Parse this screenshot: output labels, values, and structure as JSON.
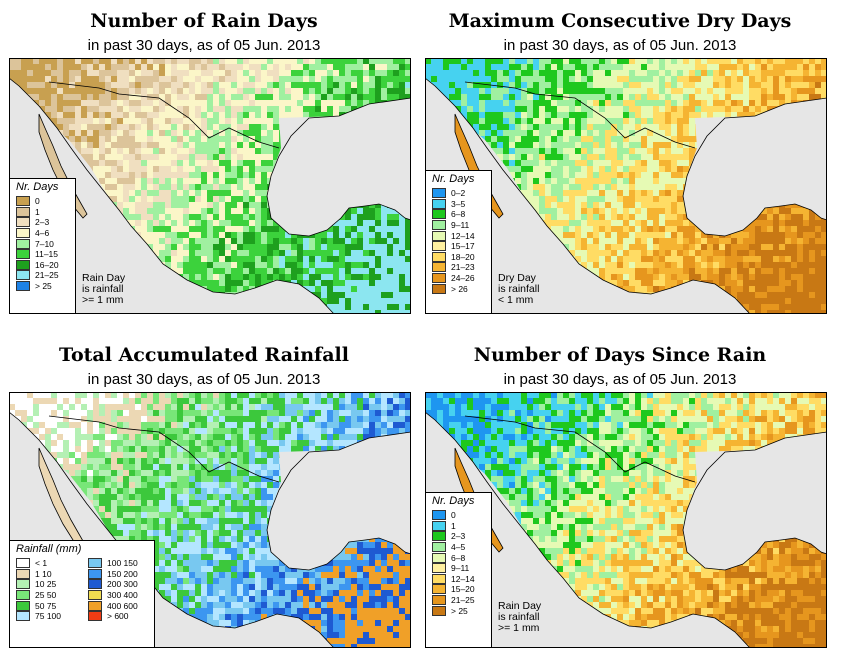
{
  "panels": [
    {
      "id": "rain-days",
      "title": "Number of Rain Days",
      "subtitle": "in past 30 days, as of  05 Jun. 2013",
      "legend_title": "Nr. Days",
      "legend": [
        {
          "label": "0",
          "color": "#c8a050"
        },
        {
          "label": "1",
          "color": "#dcc49a"
        },
        {
          "label": "2–3",
          "color": "#f0dfc0"
        },
        {
          "label": "4–6",
          "color": "#fbf6c8"
        },
        {
          "label": "7–10",
          "color": "#a0f0a0"
        },
        {
          "label": "11–15",
          "color": "#3cd23c"
        },
        {
          "label": "16–20",
          "color": "#1ea01e"
        },
        {
          "label": "21–25",
          "color": "#8ce6f0"
        },
        {
          "label": "> 25",
          "color": "#1e82e6"
        }
      ],
      "note": [
        "Rain Day",
        "is rainfall",
        ">= 1 mm"
      ]
    },
    {
      "id": "dry-days",
      "title": "Maximum Consecutive Dry Days",
      "subtitle": "in past 30 days, as of  05 Jun. 2013",
      "legend_title": "Nr. Days",
      "legend": [
        {
          "label": "0–2",
          "color": "#1e96f0"
        },
        {
          "label": "3–5",
          "color": "#46d2f0"
        },
        {
          "label": "6–8",
          "color": "#1ec81e"
        },
        {
          "label": "9–11",
          "color": "#a0f0a0"
        },
        {
          "label": "12–14",
          "color": "#e6fab4"
        },
        {
          "label": "15–17",
          "color": "#fff0a0"
        },
        {
          "label": "18–20",
          "color": "#ffdc64"
        },
        {
          "label": "21–23",
          "color": "#f5b432"
        },
        {
          "label": "24–26",
          "color": "#e6961e"
        },
        {
          "label": "> 26",
          "color": "#c87814"
        }
      ],
      "note": [
        "Dry Day",
        "is rainfall",
        "< 1 mm"
      ]
    },
    {
      "id": "total-rainfall",
      "title": "Total Accumulated Rainfall",
      "subtitle": "in past 30 days, as of  05 Jun. 2013",
      "legend_title": "Rainfall (mm)",
      "legend_left": [
        {
          "label": "< 1",
          "color": "#ffffff"
        },
        {
          "label": "1    10",
          "color": "#ecd8b4"
        },
        {
          "label": "10    25",
          "color": "#b4f0b4"
        },
        {
          "label": "25    50",
          "color": "#78e678"
        },
        {
          "label": "50    75",
          "color": "#3cc83c"
        },
        {
          "label": "75  100",
          "color": "#b4e6ff"
        }
      ],
      "legend_right": [
        {
          "label": "100  150",
          "color": "#78c8f0"
        },
        {
          "label": "150  200",
          "color": "#3c96f0"
        },
        {
          "label": "200  300",
          "color": "#1e5ad2"
        },
        {
          "label": "300  400",
          "color": "#f0dc50"
        },
        {
          "label": "400  600",
          "color": "#f0a028"
        },
        {
          "label": "> 600",
          "color": "#f03c14"
        }
      ]
    },
    {
      "id": "days-since-rain",
      "title": "Number of Days Since Rain",
      "subtitle": "in past 30 days, as of  05 Jun. 2013",
      "legend_title": "Nr. Days",
      "legend": [
        {
          "label": "0",
          "color": "#1e96f0"
        },
        {
          "label": "1",
          "color": "#46d2f0"
        },
        {
          "label": "2–3",
          "color": "#1ec81e"
        },
        {
          "label": "4–5",
          "color": "#a0f0a0"
        },
        {
          "label": "6–8",
          "color": "#e6fab4"
        },
        {
          "label": "9–11",
          "color": "#fff0a0"
        },
        {
          "label": "12–14",
          "color": "#ffdc64"
        },
        {
          "label": "15–20",
          "color": "#f5b432"
        },
        {
          "label": "21–25",
          "color": "#e6961e"
        },
        {
          "label": "> 25",
          "color": "#c87814"
        }
      ],
      "note": [
        "Rain Day",
        "is rainfall",
        ">= 1 mm"
      ]
    }
  ]
}
